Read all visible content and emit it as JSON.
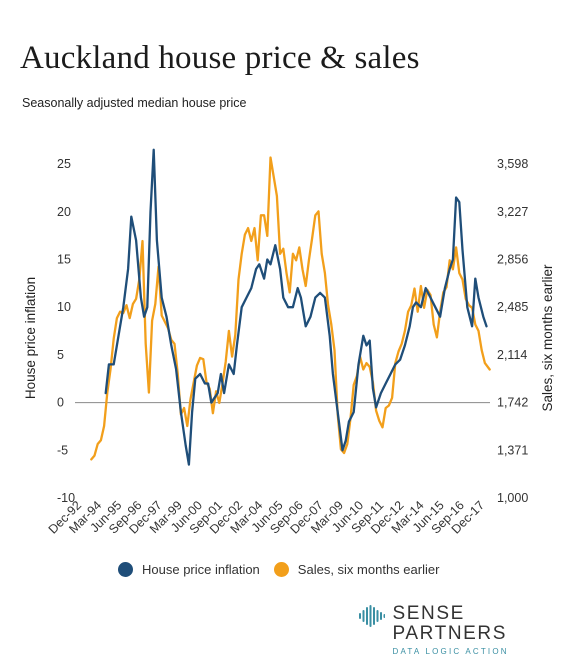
{
  "header": {
    "title": "Auckland house price & sales",
    "subtitle": "Seasonally adjusted median house price"
  },
  "legend": {
    "items": [
      {
        "label": "House price inflation",
        "color": "#1f4e79"
      },
      {
        "label": "Sales, six months earlier",
        "color": "#f29f1b"
      }
    ]
  },
  "brand": {
    "name": "SENSE PARTNERS",
    "tagline": "DATA LOGIC ACTION",
    "accent": "#3a8fa3"
  },
  "chart_data": {
    "type": "line",
    "title": "Auckland house price & sales",
    "subtitle": "Seasonally adjusted median house price",
    "ylabel_left": "House price inflation",
    "ylabel_right": "Sales, six months earlier",
    "x_tick_labels": [
      "Dec-92",
      "Mar-94",
      "Jun-95",
      "Sep-96",
      "Dec-97",
      "Mar-99",
      "Jun-00",
      "Sep-01",
      "Dec-02",
      "Mar-04",
      "Jun-05",
      "Sep-06",
      "Dec-07",
      "Mar-09",
      "Jun-10",
      "Sep-11",
      "Dec-12",
      "Mar-14",
      "Jun-15",
      "Sep-16",
      "Dec-17"
    ],
    "y_left": {
      "ticks": [
        -10,
        -5,
        0,
        5,
        10,
        15,
        20,
        25
      ],
      "lim": [
        -10,
        27
      ]
    },
    "y_right": {
      "ticks": [
        "1,000",
        "1,371",
        "1,742",
        "2,114",
        "2,485",
        "2,856",
        "3,227",
        "3,598"
      ],
      "lim": [
        1000,
        3747
      ]
    },
    "zero_line": true,
    "x_range": [
      1992.92,
      2017.92
    ],
    "series": [
      {
        "name": "House price inflation",
        "color": "#1f4e79",
        "axis": "left",
        "x": [
          1993.9,
          1994.1,
          1994.4,
          1994.7,
          1995.0,
          1995.3,
          1995.5,
          1995.8,
          1996.1,
          1996.3,
          1996.5,
          1996.7,
          1996.9,
          1997.1,
          1997.4,
          1997.7,
          1998.0,
          1998.3,
          1998.6,
          1998.9,
          1999.1,
          1999.3,
          1999.5,
          1999.8,
          2000.1,
          2000.3,
          2000.5,
          2000.7,
          2000.9,
          2001.1,
          2001.3,
          2001.6,
          2001.9,
          2002.1,
          2002.4,
          2002.7,
          2003.0,
          2003.3,
          2003.5,
          2003.8,
          2004.0,
          2004.2,
          2004.5,
          2004.8,
          2005.0,
          2005.3,
          2005.6,
          2005.9,
          2006.1,
          2006.4,
          2006.7,
          2007.0,
          2007.3,
          2007.6,
          2007.9,
          2008.1,
          2008.4,
          2008.7,
          2008.9,
          2009.1,
          2009.4,
          2009.7,
          2010.0,
          2010.2,
          2010.4,
          2010.6,
          2010.8,
          2011.1,
          2011.4,
          2011.7,
          2012.0,
          2012.3,
          2012.6,
          2012.9,
          2013.1,
          2013.3,
          2013.6,
          2013.9,
          2014.2,
          2014.5,
          2014.8,
          2015.1,
          2015.4,
          2015.6,
          2015.8,
          2016.0,
          2016.2,
          2016.5,
          2016.8,
          2017.0,
          2017.2,
          2017.5,
          2017.7
        ],
        "values": [
          1,
          4,
          4,
          7,
          10,
          14,
          19.5,
          17,
          11,
          9,
          10,
          20,
          26.5,
          17,
          11,
          9,
          6,
          3.5,
          -1,
          -4.5,
          -6.5,
          -1,
          2.5,
          3,
          2,
          2,
          0,
          0.5,
          1,
          3,
          1,
          4,
          3,
          6,
          10,
          11,
          12,
          14,
          14.5,
          13,
          15,
          14.5,
          16.5,
          14,
          11,
          10,
          10,
          12,
          11,
          8,
          9,
          11,
          11.5,
          11,
          7,
          3,
          -1,
          -5,
          -4,
          -2,
          -1,
          4,
          7,
          6,
          6.5,
          1.5,
          -0.5,
          1,
          2,
          3,
          4,
          4.5,
          6,
          8,
          10,
          10.5,
          10,
          12,
          11,
          10,
          9,
          12,
          14,
          15,
          21.5,
          21,
          16,
          10,
          8,
          13,
          11,
          9,
          8
        ]
      },
      {
        "name": "Sales, six months earlier",
        "color": "#f29f1b",
        "axis": "right",
        "x": [
          1993.0,
          1993.2,
          1993.4,
          1993.6,
          1993.8,
          1994.0,
          1994.2,
          1994.4,
          1994.6,
          1994.8,
          1995.0,
          1995.2,
          1995.4,
          1995.6,
          1995.8,
          1996.0,
          1996.2,
          1996.4,
          1996.6,
          1996.8,
          1997.0,
          1997.2,
          1997.4,
          1997.6,
          1997.8,
          1998.0,
          1998.2,
          1998.4,
          1998.6,
          1998.8,
          1999.0,
          1999.2,
          1999.4,
          1999.6,
          1999.8,
          2000.0,
          2000.2,
          2000.4,
          2000.6,
          2000.8,
          2001.0,
          2001.2,
          2001.4,
          2001.6,
          2001.8,
          2002.0,
          2002.2,
          2002.4,
          2002.6,
          2002.8,
          2003.0,
          2003.2,
          2003.4,
          2003.6,
          2003.8,
          2004.0,
          2004.2,
          2004.4,
          2004.6,
          2004.8,
          2005.0,
          2005.2,
          2005.4,
          2005.6,
          2005.8,
          2006.0,
          2006.2,
          2006.4,
          2006.6,
          2006.8,
          2007.0,
          2007.2,
          2007.4,
          2007.6,
          2007.8,
          2008.0,
          2008.2,
          2008.4,
          2008.6,
          2008.8,
          2009.0,
          2009.2,
          2009.4,
          2009.6,
          2009.8,
          2010.0,
          2010.2,
          2010.4,
          2010.6,
          2010.8,
          2011.0,
          2011.2,
          2011.4,
          2011.6,
          2011.8,
          2012.0,
          2012.2,
          2012.4,
          2012.6,
          2012.8,
          2013.0,
          2013.2,
          2013.4,
          2013.6,
          2013.8,
          2014.0,
          2014.2,
          2014.4,
          2014.6,
          2014.8,
          2015.0,
          2015.2,
          2015.4,
          2015.6,
          2015.8,
          2016.0,
          2016.2,
          2016.4,
          2016.6,
          2016.8,
          2017.0,
          2017.2,
          2017.4,
          2017.6,
          2017.9
        ],
        "values": [
          1300,
          1330,
          1420,
          1450,
          1560,
          1820,
          2000,
          2240,
          2400,
          2450,
          2440,
          2500,
          2400,
          2510,
          2550,
          2700,
          3000,
          2200,
          1820,
          2380,
          2510,
          2800,
          2420,
          2370,
          2320,
          2230,
          2200,
          1970,
          1650,
          1700,
          1560,
          1770,
          1900,
          2030,
          2090,
          2080,
          1900,
          1850,
          1660,
          1830,
          1740,
          1890,
          2060,
          2300,
          2100,
          2270,
          2700,
          2900,
          3050,
          3100,
          3000,
          3100,
          2850,
          3200,
          3200,
          3040,
          3650,
          3500,
          3350,
          2900,
          2940,
          2750,
          2600,
          2900,
          2850,
          2950,
          2780,
          2650,
          2850,
          3020,
          3200,
          3230,
          2900,
          2750,
          2500,
          2350,
          2150,
          1650,
          1380,
          1350,
          1420,
          1620,
          1880,
          1950,
          2100,
          2000,
          2050,
          2020,
          1900,
          1680,
          1600,
          1550,
          1700,
          1720,
          1780,
          2050,
          2140,
          2200,
          2300,
          2450,
          2500,
          2630,
          2450,
          2650,
          2480,
          2620,
          2580,
          2350,
          2250,
          2450,
          2600,
          2640,
          2850,
          2780,
          2950,
          2750,
          2700,
          2550,
          2500,
          2480,
          2350,
          2300,
          2150,
          2050,
          2000
        ]
      }
    ]
  }
}
